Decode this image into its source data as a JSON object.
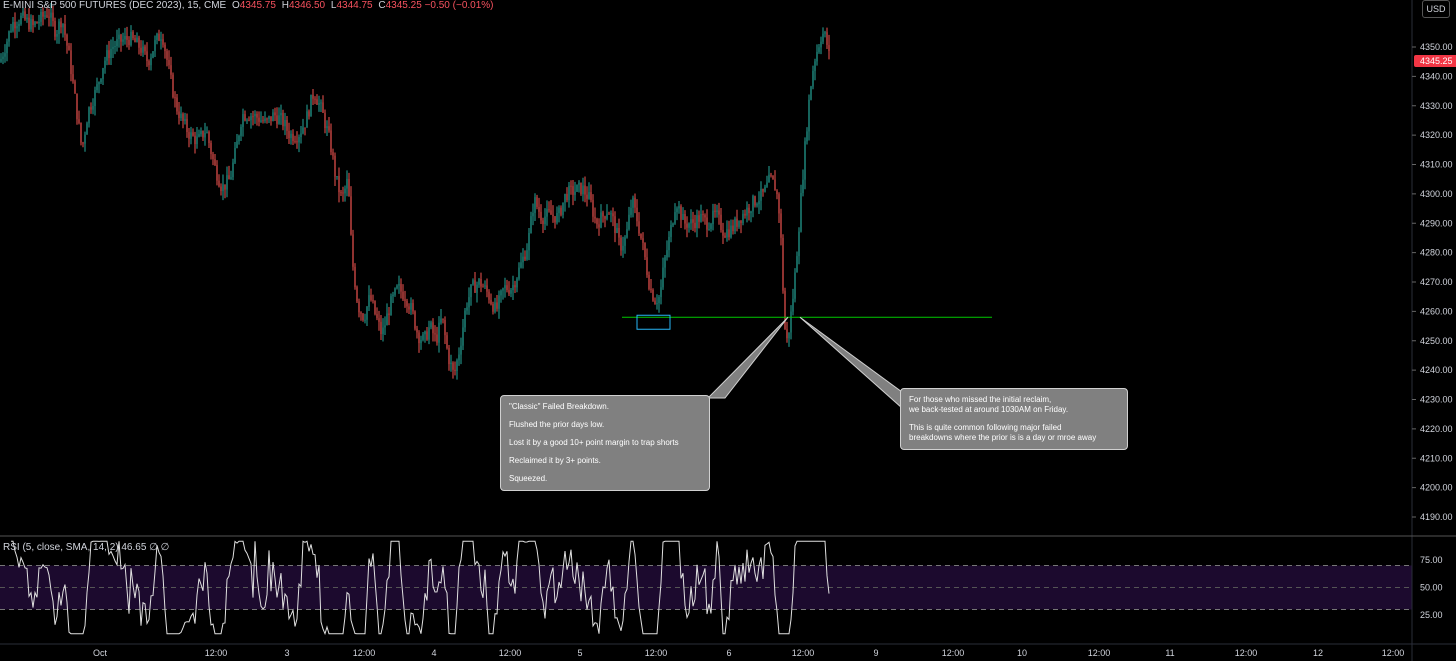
{
  "header": {
    "symbol": "E-MINI S&P 500 FUTURES (DEC 2023), 15, CME",
    "o_label": "O",
    "o": "4345.75",
    "h_label": "H",
    "h": "4346.50",
    "l_label": "L",
    "l": "4344.75",
    "c_label": "C",
    "c": "4345.25",
    "change": "−0.50 (−0.01%)"
  },
  "currency_button": "USD",
  "price_badge": "4345.25",
  "annotations": {
    "left_note": [
      "\"Classic\" Failed Breakdown.",
      "Flushed the prior days low.",
      "Lost it by a good 10+ point margin to trap shorts",
      "Reclaimed it by 3+ points.",
      "Squeezed."
    ],
    "right_note_1": "For those who missed the initial reclaim,",
    "right_note_2": "we back-tested at around 1030AM on Friday.",
    "right_note_3": "This is quite common following major failed",
    "right_note_4": "breakdowns where the prior is is a day or mroe away"
  },
  "rsi": {
    "header": "RSI (5, close, SMA, 14, 2)  46.65  ∅  ∅"
  },
  "colors": {
    "up": "#26a69a",
    "down": "#ef5350",
    "level_line": "#00c800",
    "highlight_box": "#29b6f6",
    "rsi_band": "#1c0a2e",
    "badge": "#f23645"
  },
  "chart_data": [
    {
      "type": "candlestick",
      "title": "E-MINI S&P 500 FUTURES (DEC 2023), 15, CME",
      "x_ticks": [
        "Oct",
        "12:00",
        "3",
        "12:00",
        "4",
        "12:00",
        "5",
        "12:00",
        "6",
        "12:00",
        "9",
        "12:00",
        "10",
        "12:00",
        "11",
        "12:00",
        "12",
        "12:00"
      ],
      "y_ticks": [
        4350,
        4340,
        4330,
        4320,
        4310,
        4300,
        4290,
        4280,
        4270,
        4260,
        4250,
        4240,
        4230,
        4220,
        4210,
        4200,
        4190
      ],
      "ylim": [
        4180,
        4361
      ],
      "last_price": 4345.25,
      "level_line": 4258,
      "price_path": [
        [
          0,
          4345
        ],
        [
          5,
          4350
        ],
        [
          12,
          4358
        ],
        [
          22,
          4360
        ],
        [
          33,
          4357
        ],
        [
          48,
          4362
        ],
        [
          56,
          4355
        ],
        [
          62,
          4360
        ],
        [
          70,
          4345
        ],
        [
          76,
          4330
        ],
        [
          82,
          4315
        ],
        [
          88,
          4328
        ],
        [
          96,
          4335
        ],
        [
          104,
          4345
        ],
        [
          112,
          4350
        ],
        [
          120,
          4352
        ],
        [
          130,
          4353
        ],
        [
          140,
          4350
        ],
        [
          148,
          4345
        ],
        [
          156,
          4352
        ],
        [
          162,
          4355
        ],
        [
          170,
          4340
        ],
        [
          176,
          4330
        ],
        [
          182,
          4325
        ],
        [
          190,
          4320
        ],
        [
          198,
          4318
        ],
        [
          206,
          4322
        ],
        [
          214,
          4310
        ],
        [
          222,
          4302
        ],
        [
          230,
          4305
        ],
        [
          236,
          4315
        ],
        [
          242,
          4327
        ],
        [
          250,
          4327
        ],
        [
          258,
          4326
        ],
        [
          266,
          4324
        ],
        [
          274,
          4327
        ],
        [
          282,
          4325
        ],
        [
          290,
          4320
        ],
        [
          298,
          4320
        ],
        [
          306,
          4325
        ],
        [
          314,
          4335
        ],
        [
          322,
          4328
        ],
        [
          330,
          4318
        ],
        [
          336,
          4305
        ],
        [
          342,
          4298
        ],
        [
          348,
          4305
        ],
        [
          352,
          4278
        ],
        [
          358,
          4262
        ],
        [
          364,
          4258
        ],
        [
          370,
          4265
        ],
        [
          376,
          4258
        ],
        [
          382,
          4252
        ],
        [
          390,
          4262
        ],
        [
          398,
          4268
        ],
        [
          406,
          4265
        ],
        [
          412,
          4260
        ],
        [
          418,
          4252
        ],
        [
          424,
          4250
        ],
        [
          430,
          4255
        ],
        [
          436,
          4250
        ],
        [
          442,
          4258
        ],
        [
          448,
          4245
        ],
        [
          454,
          4238
        ],
        [
          460,
          4248
        ],
        [
          466,
          4262
        ],
        [
          472,
          4268
        ],
        [
          480,
          4270
        ],
        [
          488,
          4266
        ],
        [
          496,
          4260
        ],
        [
          504,
          4268
        ],
        [
          512,
          4268
        ],
        [
          520,
          4275
        ],
        [
          528,
          4283
        ],
        [
          534,
          4298
        ],
        [
          542,
          4292
        ],
        [
          550,
          4293
        ],
        [
          558,
          4292
        ],
        [
          566,
          4300
        ],
        [
          574,
          4301
        ],
        [
          582,
          4302
        ],
        [
          590,
          4298
        ],
        [
          596,
          4290
        ],
        [
          602,
          4292
        ],
        [
          608,
          4295
        ],
        [
          614,
          4290
        ],
        [
          620,
          4282
        ],
        [
          626,
          4285
        ],
        [
          632,
          4298
        ],
        [
          638,
          4290
        ],
        [
          644,
          4280
        ],
        [
          650,
          4268
        ],
        [
          655,
          4264
        ],
        [
          660,
          4265
        ],
        [
          664,
          4276
        ],
        [
          670,
          4286
        ],
        [
          676,
          4298
        ],
        [
          684,
          4290
        ],
        [
          692,
          4290
        ],
        [
          700,
          4292
        ],
        [
          708,
          4290
        ],
        [
          716,
          4293
        ],
        [
          724,
          4287
        ],
        [
          732,
          4288
        ],
        [
          740,
          4292
        ],
        [
          748,
          4295
        ],
        [
          756,
          4298
        ],
        [
          764,
          4300
        ],
        [
          770,
          4305
        ],
        [
          776,
          4302
        ],
        [
          780,
          4292
        ],
        [
          784,
          4260
        ],
        [
          786,
          4248
        ],
        [
          790,
          4256
        ],
        [
          794,
          4268
        ],
        [
          798,
          4285
        ],
        [
          802,
          4303
        ],
        [
          806,
          4320
        ],
        [
          810,
          4335
        ],
        [
          814,
          4345
        ],
        [
          818,
          4350
        ],
        [
          822,
          4355
        ],
        [
          826,
          4353
        ],
        [
          830,
          4345
        ]
      ]
    },
    {
      "type": "line",
      "title": "RSI (5, close, SMA, 14, 2)",
      "last_value": 46.65,
      "y_ticks": [
        75,
        50,
        25
      ],
      "ylim": [
        5,
        95
      ],
      "band": [
        30,
        70
      ]
    }
  ]
}
